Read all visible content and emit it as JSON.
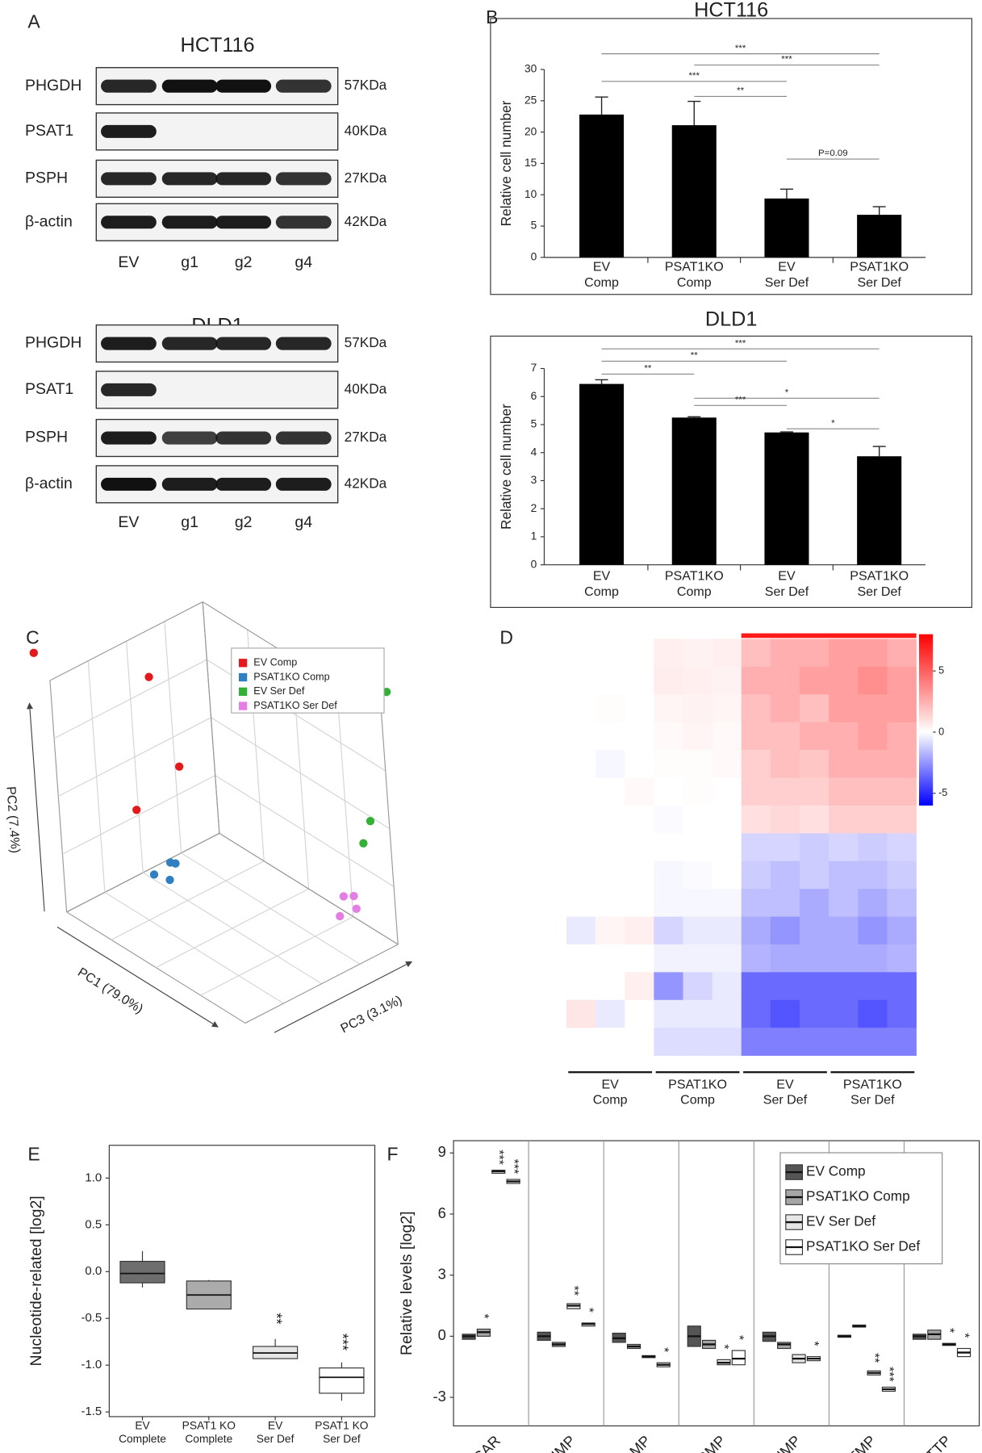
{
  "panel_labels": [
    "A",
    "B",
    "C",
    "D",
    "E",
    "F"
  ],
  "blots": [
    {
      "title": "HCT116",
      "lanes": [
        "EV",
        "g1",
        "g2",
        "g4"
      ],
      "rows": [
        {
          "protein": "PHGDH",
          "size": "57KDa",
          "intensity": [
            0.9,
            1,
            1,
            0.85
          ]
        },
        {
          "protein": "PSAT1",
          "size": "40KDa",
          "intensity": [
            0.95,
            0,
            0,
            0
          ]
        },
        {
          "protein": "PSPH",
          "size": "27KDa",
          "intensity": [
            0.9,
            0.9,
            0.9,
            0.85
          ]
        },
        {
          "protein": "β-actin",
          "size": "42KDa",
          "intensity": [
            0.95,
            0.95,
            0.95,
            0.85
          ]
        }
      ]
    },
    {
      "title": "DLD1",
      "lanes": [
        "EV",
        "g1",
        "g2",
        "g4"
      ],
      "rows": [
        {
          "protein": "PHGDH",
          "size": "57KDa",
          "intensity": [
            0.95,
            0.9,
            0.9,
            0.9
          ]
        },
        {
          "protein": "PSAT1",
          "size": "40KDa",
          "intensity": [
            0.9,
            0,
            0,
            0
          ]
        },
        {
          "protein": "PSPH",
          "size": "27KDa",
          "intensity": [
            0.95,
            0.8,
            0.85,
            0.85
          ]
        },
        {
          "protein": "β-actin",
          "size": "42KDa",
          "intensity": [
            1,
            0.95,
            0.95,
            0.95
          ]
        }
      ]
    }
  ],
  "chart_data": [
    {
      "type": "bar",
      "title": "HCT116",
      "y_label": "Relative cell number",
      "categories": [
        "EV\nComp",
        "PSAT1KO\nComp",
        "EV\nSer Def",
        "PSAT1KO\nSer Def"
      ],
      "values": [
        22.8,
        21.1,
        9.4,
        6.8
      ],
      "errors": [
        2.8,
        3.8,
        1.5,
        1.3
      ],
      "color": "#000000",
      "ylim": [
        0,
        30
      ],
      "yticks": [
        0,
        5,
        10,
        15,
        20,
        25,
        30
      ],
      "significance": [
        {
          "from": 0,
          "to": 3,
          "y": 32.5,
          "label": "***"
        },
        {
          "from": 1,
          "to": 3,
          "y": 30.7,
          "label": "***"
        },
        {
          "from": 0,
          "to": 2,
          "y": 28.1,
          "label": "***"
        },
        {
          "from": 1,
          "to": 2,
          "y": 25.7,
          "label": "**"
        },
        {
          "from": 2,
          "to": 3,
          "y": 15.7,
          "label": "P=0.09"
        }
      ]
    },
    {
      "type": "bar",
      "title": "DLD1",
      "y_label": "Relative cell number",
      "categories": [
        "EV\nComp",
        "PSAT1KO\nComp",
        "EV\nSer Def",
        "PSAT1KO\nSer Def"
      ],
      "values": [
        6.45,
        5.25,
        4.72,
        3.87
      ],
      "errors": [
        0.15,
        0.03,
        0.02,
        0.35
      ],
      "color": "#000000",
      "ylim": [
        0,
        7
      ],
      "yticks": [
        0,
        1,
        2,
        3,
        4,
        5,
        6,
        7
      ],
      "significance": [
        {
          "from": 0,
          "to": 3,
          "y": 7.7,
          "label": "***"
        },
        {
          "from": 0,
          "to": 2,
          "y": 7.26,
          "label": "**"
        },
        {
          "from": 0,
          "to": 1,
          "y": 6.8,
          "label": "**"
        },
        {
          "from": 1,
          "to": 3,
          "y": 5.94,
          "label": "*"
        },
        {
          "from": 1,
          "to": 2,
          "y": 5.68,
          "label": "***"
        },
        {
          "from": 2,
          "to": 3,
          "y": 4.85,
          "label": "*"
        }
      ]
    },
    {
      "type": "scatter3d",
      "x_label": "PC1 (79.0%)",
      "y_label": "PC2 (7.4%)",
      "z_label": "PC3 (3.1%)",
      "xlim": [
        0,
        1
      ],
      "ylim": [
        0,
        1
      ],
      "zlim": [
        0,
        1
      ],
      "legend": "top-right",
      "series": [
        {
          "name": "EV Comp",
          "color": "#e31a1c",
          "x": [
            -0.13,
            0.21,
            0.35,
            0.36
          ],
          "y": [
            1.04,
            0.98,
            0.66,
            0.58
          ],
          "z": [
            0.05,
            0.4,
            0.4,
            0.1
          ]
        },
        {
          "name": "PSAT1KO Comp",
          "color": "#2f7fc1",
          "x": [
            0.35,
            0.38,
            0.25,
            0.34
          ],
          "y": [
            0.28,
            0.29,
            0.18,
            0.2
          ],
          "z": [
            0.3,
            0.3,
            0.3,
            0.3
          ]
        },
        {
          "name": "EV Ser Def",
          "color": "#33b035",
          "x": [
            1.04,
            0.89,
            0.84
          ],
          "y": [
            1.11,
            0.48,
            0.36
          ],
          "z": [
            1,
            1,
            1
          ]
        },
        {
          "name": "PSAT1KO Ser Def",
          "color": "#e47ee4",
          "x": [
            0.98,
            1.04,
            1.05,
            0.95
          ],
          "y": [
            0.3,
            0.33,
            0.28,
            0.2
          ],
          "z": [
            0.7,
            0.7,
            0.7,
            0.7
          ]
        }
      ]
    },
    {
      "type": "heatmap",
      "x_groups": [
        "EV\nComp",
        "PSAT1KO\nComp",
        "EV\nSer Def",
        "PSAT1KO\nSer Def"
      ],
      "clim": [
        -6,
        8
      ],
      "cticks": [
        5,
        0,
        -5
      ],
      "values": [
        [
          0,
          0,
          0,
          0.5,
          0.4,
          0.5,
          2,
          2.5,
          2.5,
          3,
          3,
          2.5
        ],
        [
          0,
          0,
          0,
          0.6,
          0.5,
          0.4,
          2.5,
          2.5,
          3,
          3,
          3.5,
          3
        ],
        [
          0,
          0.1,
          0,
          0.3,
          0.4,
          0.3,
          2,
          2.5,
          2,
          3,
          3,
          3
        ],
        [
          0,
          0,
          0,
          0.2,
          0.3,
          0.2,
          2,
          2,
          2.5,
          2.5,
          3,
          2.5
        ],
        [
          0,
          -0.2,
          0,
          0.1,
          0.1,
          0.2,
          1.5,
          2,
          1.8,
          2.5,
          2.5,
          2.5
        ],
        [
          0,
          0,
          0.2,
          0,
          0.1,
          0,
          1.5,
          1.5,
          1.5,
          2,
          2,
          2
        ],
        [
          0,
          0,
          0,
          -0.1,
          0,
          0,
          1,
          1.2,
          1,
          1.5,
          1.5,
          1.5
        ],
        [
          0,
          0,
          0,
          0,
          0,
          0,
          -1,
          -1,
          -1.2,
          -1,
          -1.2,
          -1
        ],
        [
          0,
          0,
          0,
          -0.2,
          -0.1,
          0,
          -1.2,
          -1.5,
          -1.2,
          -1.5,
          -1.5,
          -1.2
        ],
        [
          0,
          0,
          0,
          -0.2,
          -0.2,
          -0.2,
          -1.5,
          -1.5,
          -2,
          -1.5,
          -2,
          -1.5
        ],
        [
          -0.5,
          0.3,
          0.5,
          -1,
          -0.5,
          -0.5,
          -2,
          -2.5,
          -2,
          -2,
          -2.5,
          -2
        ],
        [
          0,
          0,
          0,
          -0.3,
          -0.3,
          -0.3,
          -1.8,
          -2,
          -2,
          -2,
          -2,
          -1.8
        ],
        [
          0,
          0,
          0.5,
          -2.5,
          -1,
          -0.5,
          -3.5,
          -3.5,
          -3.5,
          -3.5,
          -3.5,
          -3.5
        ],
        [
          0.8,
          -0.5,
          0,
          -0.5,
          -0.5,
          -0.5,
          -3.5,
          -4,
          -3.5,
          -3.5,
          -4,
          -3.5
        ],
        [
          0,
          0,
          0,
          -0.8,
          -0.8,
          -0.8,
          -3,
          -3,
          -3,
          -3,
          -3,
          -3
        ]
      ]
    },
    {
      "type": "box",
      "y_label": "Nucleotide-related [log2]",
      "categories": [
        "EV\nComplete",
        "PSAT1 KO\nComplete",
        "EV\nSer Def",
        "PSAT1 KO\nSer Def"
      ],
      "whisker_low": [
        -0.17,
        -0.4,
        -0.93,
        -1.38
      ],
      "q1": [
        -0.12,
        -0.4,
        -0.93,
        -1.3
      ],
      "median": [
        -0.02,
        -0.25,
        -0.87,
        -1.13
      ],
      "q3": [
        0.11,
        -0.1,
        -0.8,
        -1.03
      ],
      "whisker_high": [
        0.22,
        -0.09,
        -0.72,
        -0.97
      ],
      "colors": [
        "#6e6e6e",
        "#ababab",
        "#e6e6e6",
        "#ffffff"
      ],
      "ylim": [
        -1.55,
        1.35
      ],
      "yticks": [
        {
          "value": 1,
          "label": "1.0"
        },
        {
          "value": 0.5,
          "label": "0.5"
        },
        {
          "value": 0,
          "label": "0.0"
        },
        {
          "value": -0.5,
          "label": "-0.5"
        },
        {
          "value": -1,
          "label": "-1.0"
        },
        {
          "value": -1.5,
          "label": "-1.5"
        }
      ],
      "annotations": [
        {
          "category": 2,
          "label": "**"
        },
        {
          "category": 3,
          "label": "***"
        }
      ]
    },
    {
      "type": "box_grouped",
      "y_label": "Relative levels [log2]",
      "legend": "top-right",
      "categories": [
        "AICAR",
        "IMP",
        "AMP",
        "dGMP",
        "UMP",
        "TMP",
        "TTP"
      ],
      "ylim": [
        -4.4,
        9.6
      ],
      "yticks": [
        -3,
        0,
        3,
        6,
        9
      ],
      "series": [
        {
          "name": "EV Comp",
          "color": "#555555",
          "values": [
            0,
            0,
            -0.1,
            0,
            0,
            0,
            0
          ],
          "q1": [
            -0.15,
            -0.2,
            -0.3,
            -0.5,
            -0.25,
            -0.05,
            -0.15
          ],
          "q3": [
            0.1,
            0.2,
            0.15,
            0.5,
            0.2,
            0.05,
            0.1
          ]
        },
        {
          "name": "PSAT1KO Comp",
          "color": "#a6a6a6",
          "values": [
            0.2,
            -0.4,
            -0.5,
            -0.4,
            -0.4,
            0.5,
            0.1
          ],
          "q1": [
            0,
            -0.5,
            -0.6,
            -0.6,
            -0.6,
            0.45,
            -0.15
          ],
          "q3": [
            0.35,
            -0.3,
            -0.4,
            -0.2,
            -0.3,
            0.55,
            0.3
          ]
        },
        {
          "name": "EV Ser Def",
          "color": "#e6e6e6",
          "values": [
            8.1,
            1.5,
            -1,
            -1.3,
            -1.1,
            -1.8,
            -0.4
          ],
          "q1": [
            8,
            1.35,
            -1.05,
            -1.4,
            -1.3,
            -1.9,
            -0.45
          ],
          "q3": [
            8.15,
            1.6,
            -0.95,
            -1.15,
            -0.9,
            -1.7,
            -0.35
          ]
        },
        {
          "name": "PSAT1KO Ser Def",
          "color": "#ffffff",
          "values": [
            7.6,
            0.6,
            -1.4,
            -1.1,
            -1.1,
            -2.6,
            -0.8
          ],
          "q1": [
            7.5,
            0.5,
            -1.5,
            -1.4,
            -1.2,
            -2.7,
            -1
          ],
          "q3": [
            7.7,
            0.65,
            -1.3,
            -0.7,
            -1,
            -2.5,
            -0.6
          ]
        }
      ],
      "annotations": [
        {
          "series": 1,
          "category": 0,
          "label": "*"
        },
        {
          "series": 2,
          "category": 0,
          "label": "***"
        },
        {
          "series": 3,
          "category": 0,
          "label": "***"
        },
        {
          "series": 2,
          "category": 1,
          "label": "**"
        },
        {
          "series": 3,
          "category": 1,
          "label": "*"
        },
        {
          "series": 3,
          "category": 2,
          "label": "*"
        },
        {
          "series": 2,
          "category": 3,
          "label": "*"
        },
        {
          "series": 3,
          "category": 3,
          "label": "*"
        },
        {
          "series": 3,
          "category": 4,
          "label": "*"
        },
        {
          "series": 2,
          "category": 5,
          "label": "**"
        },
        {
          "series": 3,
          "category": 5,
          "label": "***"
        },
        {
          "series": 2,
          "category": 6,
          "label": "*"
        },
        {
          "series": 3,
          "category": 6,
          "label": "*"
        }
      ]
    }
  ]
}
